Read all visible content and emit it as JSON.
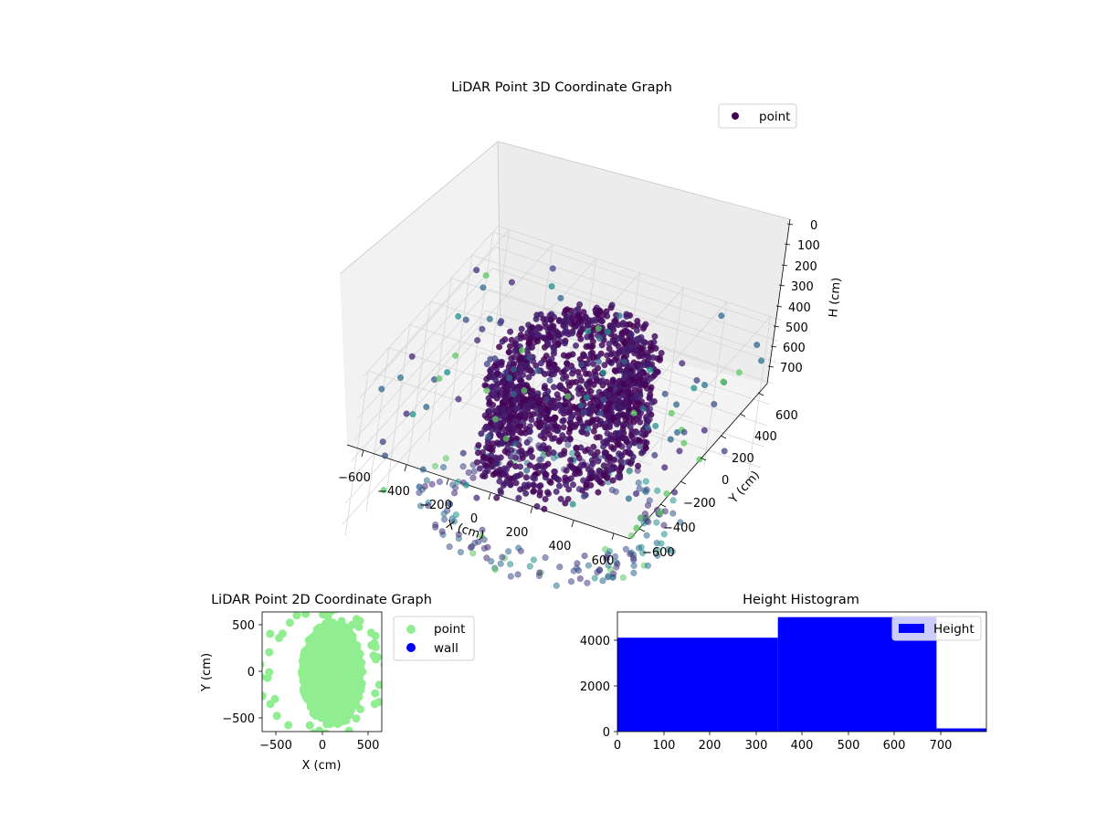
{
  "chart_data": [
    {
      "type": "scatter",
      "title": "LiDAR Point 3D Coordinate Graph",
      "xlabel": "X (cm)",
      "ylabel": "Y (cm)",
      "zlabel": "H (cm)",
      "x_ticks": [
        "−600",
        "−400",
        "−200",
        "0",
        "200",
        "400",
        "600"
      ],
      "y_ticks": [
        "−600",
        "−400",
        "−200",
        "0",
        "200",
        "400",
        "600"
      ],
      "z_ticks": [
        "0",
        "100",
        "200",
        "300",
        "400",
        "500",
        "600",
        "700"
      ],
      "xlim": [
        -650,
        650
      ],
      "ylim": [
        -650,
        650
      ],
      "zlim": [
        0,
        780
      ],
      "z_inverted": true,
      "legend": [
        {
          "label": "point",
          "color": "#440154"
        }
      ],
      "legend_position": "top-right",
      "colormap": "viridis",
      "grid": true
    },
    {
      "type": "scatter",
      "title": "LiDAR Point 2D Coordinate Graph",
      "xlabel": "X (cm)",
      "ylabel": "Y (cm)",
      "x_ticks": [
        "−500",
        "0",
        "500"
      ],
      "y_ticks": [
        "−500",
        "0",
        "500"
      ],
      "xlim": [
        -650,
        650
      ],
      "ylim": [
        -650,
        650
      ],
      "legend": [
        {
          "label": "point",
          "color": "#90ee90"
        },
        {
          "label": "wall",
          "color": "#0000ff"
        }
      ],
      "legend_position": "outside-right"
    },
    {
      "type": "bar",
      "title": "Height Histogram",
      "bins": [
        {
          "start": 0,
          "end": 348,
          "count": 4120
        },
        {
          "start": 348,
          "end": 692,
          "count": 5020
        },
        {
          "start": 692,
          "end": 800,
          "count": 140
        }
      ],
      "color": "#0000ff",
      "x_ticks": [
        "0",
        "100",
        "200",
        "300",
        "400",
        "500",
        "600",
        "700"
      ],
      "y_ticks": [
        "0",
        "2000",
        "4000"
      ],
      "xlim": [
        0,
        800
      ],
      "ylim": [
        0,
        5250
      ],
      "legend": [
        {
          "label": "Height",
          "color": "#0000ff"
        }
      ],
      "legend_position": "top-right"
    }
  ]
}
